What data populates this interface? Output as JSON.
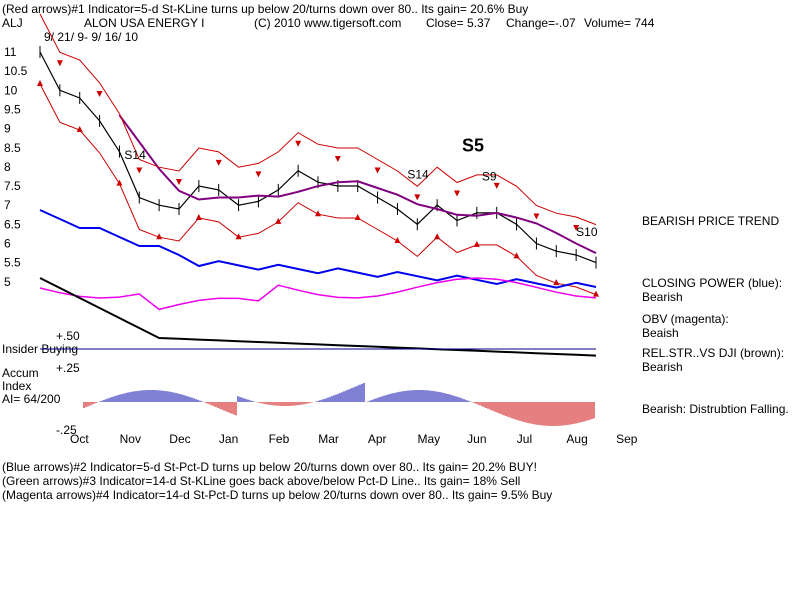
{
  "header": {
    "line1": "(Red arrows)#1 Indicator=5-d St-KLine turns up below 20/turns down over 80.. Its gain= 20.6% Buy",
    "ticker": "ALJ",
    "company": "ALON USA ENERGY I",
    "copyright": "(C) 2010 www.tigersoft.com",
    "close": "Close=  5.37",
    "change": "Change=-.07",
    "volume": "Volume= 744",
    "date_range": "9/ 21/ 9-  9/ 16/ 10"
  },
  "chart_data": {
    "type": "line",
    "title": "ALON USA ENERGY I",
    "x_labels": [
      "Oct",
      "Nov",
      "Dec",
      "Jan",
      "Feb",
      "Mar",
      "Apr",
      "May",
      "Jun",
      "Jul",
      "Aug",
      "Sep"
    ],
    "price_axis": {
      "ticks": [
        "11",
        "10.5",
        "10",
        "9.5",
        "9",
        "8.5",
        "8",
        "7.5",
        "7",
        "6.5",
        "6",
        "5.5",
        "5"
      ],
      "range": [
        4.9,
        11.2
      ]
    },
    "price_series": {
      "name": "Price",
      "months": [
        0,
        0.4,
        0.8,
        1.2,
        1.6,
        2.0,
        2.4,
        2.8,
        3.2,
        3.6,
        4.0,
        4.4,
        4.8,
        5.2,
        5.6,
        6.0,
        6.4,
        6.8,
        7.2,
        7.6,
        8.0,
        8.4,
        8.8,
        9.2,
        9.6,
        10.0,
        10.4,
        10.8,
        11.2
      ],
      "values": [
        11.0,
        10.0,
        9.8,
        9.2,
        8.4,
        7.2,
        7.0,
        6.9,
        7.5,
        7.4,
        7.0,
        7.1,
        7.4,
        7.9,
        7.6,
        7.5,
        7.5,
        7.2,
        6.9,
        6.5,
        7.0,
        6.6,
        6.8,
        6.8,
        6.5,
        6.0,
        5.8,
        5.7,
        5.5
      ]
    },
    "labels": [
      {
        "text": "S14",
        "month": 1.7,
        "value": 8.2,
        "style": "normal"
      },
      {
        "text": "S14",
        "month": 7.4,
        "value": 7.7,
        "style": "normal"
      },
      {
        "text": "S5",
        "month": 8.5,
        "value": 8.4,
        "style": "big"
      },
      {
        "text": "S9",
        "month": 8.9,
        "value": 7.65,
        "style": "normal"
      },
      {
        "text": "S10",
        "month": 10.8,
        "value": 6.2,
        "style": "normal"
      }
    ],
    "insider_buying_label": "Insider Buying",
    "accum_axis": {
      "ticks": [
        "+.50",
        "+.25",
        "-.25"
      ]
    },
    "accum_title": "Accum",
    "accum_title2": "Index",
    "accum_reading": "AI= 64/200"
  },
  "right_panel": {
    "trend": "BEARISH PRICE TREND",
    "closing_power_title": "CLOSING POWER (blue):",
    "closing_power_value": "Bearish",
    "obv_title": "OBV (magenta):",
    "obv_value": "Beaish",
    "relstr_title": "REL.STR..VS DJI (brown):",
    "relstr_value": "Bearish",
    "accum_note": "Bearish: Distrubtion Falling."
  },
  "footer": {
    "line1": "(Blue arrows)#2 Indicator=5-d St-Pct-D turns up below 20/turns down over 80..  Its gain= 20.2% BUY!",
    "line2": "(Green arrows)#3 Indicator=14-d St-KLine goes back above/below Pct-D Line..  Its gain= 18% Sell",
    "line3": "(Magenta arrows)#4 Indicator=14-d St-Pct-D turns up below 20/turns down over 80..  Its gain= 9.5% Buy"
  },
  "colors": {
    "price": "#000000",
    "bands": "#cc0000",
    "moving_avg": "#800080",
    "closing_power": "#0000ee",
    "obv": "#ee00ee",
    "rel_strength": "#000000",
    "insider_line": "#000080",
    "accum_pos": "#0000aa",
    "accum_neg": "#cc0000"
  }
}
